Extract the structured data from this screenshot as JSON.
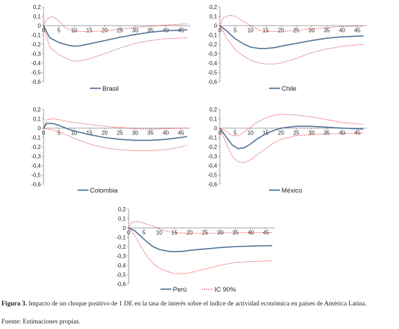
{
  "chart_data": [
    {
      "type": "line",
      "legend": [
        "Brasil"
      ],
      "legend_position": "bottom",
      "ylim": [
        -0.6,
        0.2
      ],
      "yticks": [
        "0,2",
        "0,1",
        "0",
        "-0,1",
        "-0,2",
        "-0,3",
        "-0,4",
        "-0,5",
        "-0,6"
      ],
      "xticks": [
        "0",
        "5",
        "10",
        "15",
        "20",
        "25",
        "30",
        "35",
        "40",
        "45"
      ],
      "series": [
        {
          "name": "Brasil",
          "x": [
            0,
            2,
            5,
            8,
            10,
            12,
            15,
            20,
            25,
            30,
            35,
            40,
            47
          ],
          "values": [
            0,
            -0.13,
            -0.18,
            -0.21,
            -0.22,
            -0.215,
            -0.195,
            -0.16,
            -0.125,
            -0.095,
            -0.07,
            -0.055,
            -0.045
          ]
        },
        {
          "x": [
            0,
            1,
            3,
            5,
            7,
            10,
            15,
            20,
            25,
            30,
            35,
            40,
            47
          ],
          "values": [
            0,
            0.07,
            0.1,
            0.05,
            -0.02,
            -0.06,
            -0.065,
            -0.055,
            -0.04,
            -0.02,
            -0.005,
            0.005,
            0.02
          ]
        },
        {
          "x": [
            0,
            2,
            5,
            8,
            10,
            12,
            15,
            20,
            25,
            30,
            35,
            40,
            47
          ],
          "values": [
            0,
            -0.23,
            -0.31,
            -0.36,
            -0.38,
            -0.375,
            -0.355,
            -0.3,
            -0.24,
            -0.19,
            -0.16,
            -0.14,
            -0.13
          ]
        }
      ]
    },
    {
      "type": "line",
      "legend": [
        "Chile"
      ],
      "legend_position": "bottom",
      "ylim": [
        -0.6,
        0.2
      ],
      "yticks": [
        "0,2",
        "0,1",
        "0",
        "-0,1",
        "-0,2",
        "-0,3",
        "-0,4",
        "-0,5",
        "-0,6"
      ],
      "xticks": [
        "0",
        "5",
        "10",
        "15",
        "20",
        "25",
        "30",
        "35",
        "40",
        "45"
      ],
      "series": [
        {
          "name": "Chile",
          "x": [
            0,
            2,
            5,
            8,
            10,
            13,
            15,
            18,
            20,
            25,
            30,
            35,
            40,
            47
          ],
          "values": [
            0,
            -0.05,
            -0.14,
            -0.2,
            -0.23,
            -0.245,
            -0.245,
            -0.235,
            -0.22,
            -0.19,
            -0.16,
            -0.135,
            -0.12,
            -0.11
          ]
        },
        {
          "x": [
            0,
            1,
            3,
            5,
            7,
            10,
            13,
            15,
            20,
            25,
            30,
            35,
            40,
            47
          ],
          "values": [
            0,
            0.08,
            0.11,
            0.1,
            0.06,
            0.0,
            -0.05,
            -0.06,
            -0.065,
            -0.05,
            -0.035,
            -0.02,
            -0.01,
            -0.005
          ]
        },
        {
          "x": [
            0,
            2,
            5,
            8,
            10,
            13,
            15,
            18,
            20,
            25,
            30,
            35,
            40,
            47
          ],
          "values": [
            0,
            -0.12,
            -0.26,
            -0.33,
            -0.37,
            -0.4,
            -0.41,
            -0.41,
            -0.4,
            -0.35,
            -0.29,
            -0.25,
            -0.22,
            -0.2
          ]
        }
      ]
    },
    {
      "type": "line",
      "legend": [
        "Colombia"
      ],
      "legend_position": "bottom",
      "ylim": [
        -0.6,
        0.2
      ],
      "yticks": [
        "0,2",
        "0,1",
        "0",
        "-0,1",
        "-0,2",
        "-0,3",
        "-0,4",
        "-0,5",
        "-0,6"
      ],
      "xticks": [
        "0",
        "5",
        "10",
        "15",
        "20",
        "25",
        "30",
        "35",
        "40",
        "45"
      ],
      "series": [
        {
          "name": "Colombia",
          "x": [
            0,
            1,
            3,
            5,
            8,
            10,
            15,
            20,
            25,
            30,
            35,
            40,
            45,
            47
          ],
          "values": [
            0,
            0.05,
            0.05,
            0.03,
            -0.01,
            -0.03,
            -0.07,
            -0.1,
            -0.12,
            -0.13,
            -0.13,
            -0.12,
            -0.1,
            -0.09
          ]
        },
        {
          "x": [
            0,
            1,
            3,
            5,
            8,
            10,
            15,
            20,
            25,
            30,
            35,
            40,
            45,
            47
          ],
          "values": [
            0,
            0.09,
            0.1,
            0.09,
            0.07,
            0.06,
            0.04,
            0.02,
            0.005,
            -0.005,
            -0.01,
            -0.005,
            0.0,
            0.0
          ]
        },
        {
          "x": [
            0,
            1,
            3,
            5,
            8,
            10,
            15,
            20,
            25,
            30,
            35,
            40,
            45,
            47
          ],
          "values": [
            0,
            -0.01,
            -0.02,
            -0.04,
            -0.08,
            -0.11,
            -0.17,
            -0.21,
            -0.23,
            -0.24,
            -0.24,
            -0.23,
            -0.2,
            -0.18
          ]
        }
      ]
    },
    {
      "type": "line",
      "legend": [
        "México"
      ],
      "legend_position": "bottom",
      "ylim": [
        -0.6,
        0.2
      ],
      "yticks": [
        "0,2",
        "0,1",
        "0",
        "-0,1",
        "-0,2",
        "-0,3",
        "-0,4",
        "-0,5",
        "-0,6"
      ],
      "xticks": [
        "0",
        "5",
        "10",
        "15",
        "20",
        "25",
        "30",
        "35",
        "40",
        "45"
      ],
      "series": [
        {
          "name": "México",
          "x": [
            0,
            2,
            4,
            6,
            8,
            10,
            12,
            15,
            18,
            20,
            25,
            30,
            35,
            40,
            47
          ],
          "values": [
            0,
            -0.09,
            -0.18,
            -0.22,
            -0.21,
            -0.17,
            -0.12,
            -0.06,
            -0.02,
            0.0,
            0.02,
            0.02,
            0.01,
            0.0,
            -0.01
          ]
        },
        {
          "x": [
            0,
            2,
            4,
            6,
            8,
            10,
            12,
            15,
            18,
            20,
            25,
            30,
            35,
            40,
            47
          ],
          "values": [
            0,
            -0.03,
            -0.08,
            -0.08,
            -0.04,
            0.01,
            0.06,
            0.11,
            0.14,
            0.15,
            0.14,
            0.12,
            0.09,
            0.06,
            0.04
          ]
        },
        {
          "x": [
            0,
            2,
            4,
            6,
            8,
            10,
            12,
            15,
            18,
            20,
            25,
            30,
            35,
            40,
            47
          ],
          "values": [
            0,
            -0.16,
            -0.3,
            -0.36,
            -0.37,
            -0.34,
            -0.29,
            -0.22,
            -0.15,
            -0.12,
            -0.08,
            -0.07,
            -0.06,
            -0.06,
            -0.05
          ]
        }
      ]
    },
    {
      "type": "line",
      "legend": [
        "Perú",
        "IC 90%"
      ],
      "legend_position": "bottom",
      "ylim": [
        -0.6,
        0.2
      ],
      "yticks": [
        "0,2",
        "0,1",
        "0",
        "-0,1",
        "-0,2",
        "-0,3",
        "-0,4",
        "-0,5",
        "-0,6"
      ],
      "xticks": [
        "0",
        "5",
        "10",
        "15",
        "20",
        "25",
        "30",
        "35",
        "40",
        "45"
      ],
      "series": [
        {
          "name": "Perú",
          "x": [
            0,
            2,
            4,
            6,
            8,
            10,
            13,
            15,
            18,
            20,
            25,
            30,
            35,
            40,
            47
          ],
          "values": [
            0,
            -0.03,
            -0.09,
            -0.15,
            -0.2,
            -0.23,
            -0.25,
            -0.255,
            -0.25,
            -0.24,
            -0.225,
            -0.21,
            -0.2,
            -0.195,
            -0.19
          ]
        },
        {
          "name": "IC 90%",
          "x": [
            0,
            1,
            3,
            5,
            8,
            10,
            13,
            15,
            20,
            25,
            30,
            35,
            40,
            47
          ],
          "values": [
            0,
            0.06,
            0.07,
            0.05,
            0.02,
            -0.01,
            -0.04,
            -0.05,
            -0.06,
            -0.06,
            -0.055,
            -0.05,
            -0.05,
            -0.05
          ]
        },
        {
          "x": [
            0,
            2,
            4,
            6,
            8,
            10,
            13,
            15,
            18,
            20,
            25,
            30,
            35,
            40,
            47
          ],
          "values": [
            0,
            -0.08,
            -0.2,
            -0.3,
            -0.38,
            -0.43,
            -0.47,
            -0.49,
            -0.49,
            -0.48,
            -0.44,
            -0.4,
            -0.37,
            -0.36,
            -0.35
          ]
        }
      ]
    }
  ],
  "colors": {
    "central": "#4a6f97",
    "band": "#e0393e",
    "axis": "#808285",
    "text": "#231f20"
  },
  "caption": {
    "label": "Figura 3.",
    "text": "Impacto de un choque positivo de 1 DE en la tasa de interés sobre el índice de actividad económica en países de América Latina.",
    "source": "Fuente: Estimaciones propias."
  }
}
